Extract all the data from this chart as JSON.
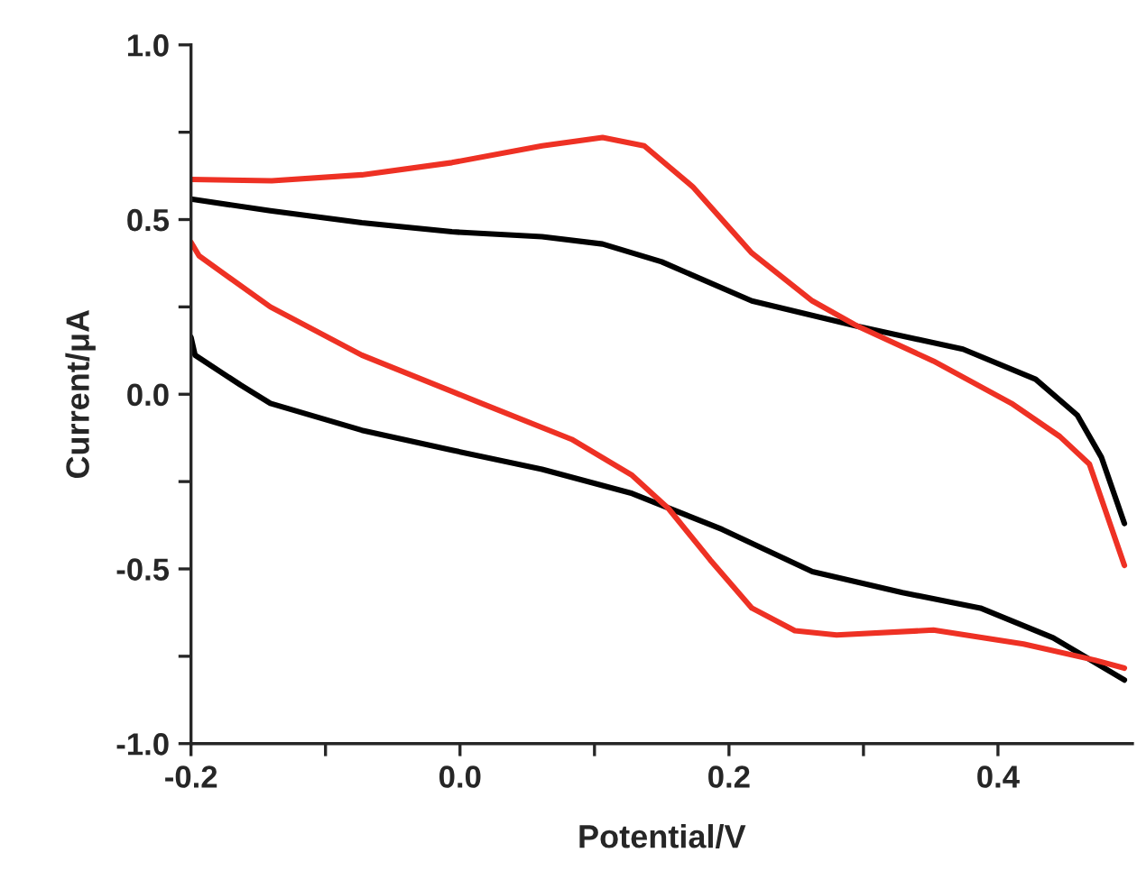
{
  "chart_data": {
    "type": "line",
    "xlabel": "Potential/V",
    "ylabel": "Current/μA",
    "xlim": [
      -0.2,
      0.5
    ],
    "ylim": [
      -1.0,
      1.0
    ],
    "xticks": [
      {
        "value": -0.2,
        "label": "-0.2"
      },
      {
        "value": -0.1,
        "label": null
      },
      {
        "value": 0.0,
        "label": "0.0"
      },
      {
        "value": 0.1,
        "label": null
      },
      {
        "value": 0.2,
        "label": "0.2"
      },
      {
        "value": 0.3,
        "label": null
      },
      {
        "value": 0.4,
        "label": "0.4"
      }
    ],
    "yticks": [
      {
        "value": -1.0,
        "label": "-1.0"
      },
      {
        "value": -0.75,
        "label": null
      },
      {
        "value": -0.5,
        "label": "-0.5"
      },
      {
        "value": -0.25,
        "label": null
      },
      {
        "value": 0.0,
        "label": "0.0"
      },
      {
        "value": 0.25,
        "label": null
      },
      {
        "value": 0.5,
        "label": "0.5"
      },
      {
        "value": 0.75,
        "label": null
      },
      {
        "value": 1.0,
        "label": "1.0"
      }
    ],
    "marker": "none",
    "line_style": "solid",
    "series": [
      {
        "color": "#000000",
        "x": [
          -0.2,
          -0.141,
          -0.073,
          -0.006,
          0.061,
          0.106,
          0.15,
          0.217,
          0.296,
          0.374,
          0.428,
          0.459,
          0.477,
          0.494
        ],
        "values": [
          0.559,
          0.525,
          0.491,
          0.465,
          0.451,
          0.43,
          0.379,
          0.267,
          0.194,
          0.129,
          0.043,
          -0.06,
          -0.181,
          -0.37
        ]
      },
      {
        "color": "#000000",
        "x": [
          -0.2,
          -0.197,
          -0.163,
          -0.141,
          -0.073,
          -0.006,
          0.061,
          0.128,
          0.195,
          0.262,
          0.329,
          0.387,
          0.441,
          0.494
        ],
        "values": [
          0.163,
          0.112,
          0.026,
          -0.026,
          -0.103,
          -0.16,
          -0.215,
          -0.284,
          -0.387,
          -0.508,
          -0.568,
          -0.612,
          -0.697,
          -0.818
        ]
      },
      {
        "color": "#ee3124",
        "x": [
          -0.2,
          -0.14,
          -0.073,
          -0.006,
          0.061,
          0.106,
          0.137,
          0.173,
          0.217,
          0.262,
          0.296,
          0.352,
          0.41,
          0.446,
          0.468,
          0.494
        ],
        "values": [
          0.615,
          0.611,
          0.628,
          0.663,
          0.711,
          0.735,
          0.711,
          0.594,
          0.404,
          0.267,
          0.194,
          0.095,
          -0.026,
          -0.121,
          -0.2,
          -0.49
        ]
      },
      {
        "color": "#ee3124",
        "x": [
          -0.2,
          -0.194,
          -0.141,
          -0.073,
          -0.006,
          0.016,
          0.083,
          0.128,
          0.155,
          0.186,
          0.217,
          0.249,
          0.28,
          0.352,
          0.419,
          0.472,
          0.494
        ],
        "values": [
          0.435,
          0.396,
          0.25,
          0.112,
          0.008,
          -0.026,
          -0.129,
          -0.232,
          -0.327,
          -0.474,
          -0.612,
          -0.677,
          -0.689,
          -0.675,
          -0.715,
          -0.761,
          -0.784
        ]
      }
    ]
  }
}
